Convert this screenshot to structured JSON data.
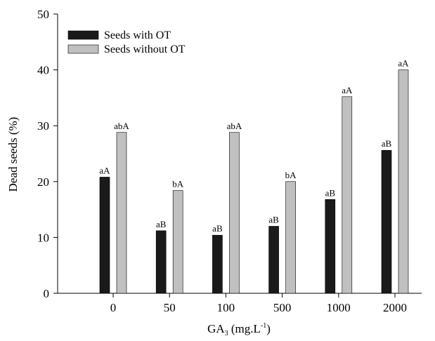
{
  "chart_data": {
    "type": "bar",
    "y_label": "Dead seeds (%)",
    "x_label": {
      "base": "GA",
      "sub": "3",
      "unit": " (mg.L",
      "sup": "-1",
      "close": ")"
    },
    "categories": [
      "0",
      "50",
      "100",
      "500",
      "1000",
      "2000"
    ],
    "series": [
      {
        "name": "Seeds with OT",
        "color": "#1a1a1a",
        "values": [
          20.8,
          11.2,
          10.4,
          12,
          16.8,
          25.6
        ],
        "annotations": [
          "aA",
          "aB",
          "aB",
          "aB",
          "aB",
          "aB"
        ]
      },
      {
        "name": "Seeds without OT",
        "color": "#c0c0c0",
        "values": [
          28.8,
          18.4,
          28.8,
          20,
          35.2,
          40
        ],
        "annotations": [
          "abA",
          "bA",
          "abA",
          "bA",
          "aA",
          "aA"
        ]
      }
    ],
    "ylim": [
      0,
      50
    ],
    "yticks": [
      0,
      10,
      20,
      30,
      40,
      50
    ],
    "legend": "upper-left"
  }
}
